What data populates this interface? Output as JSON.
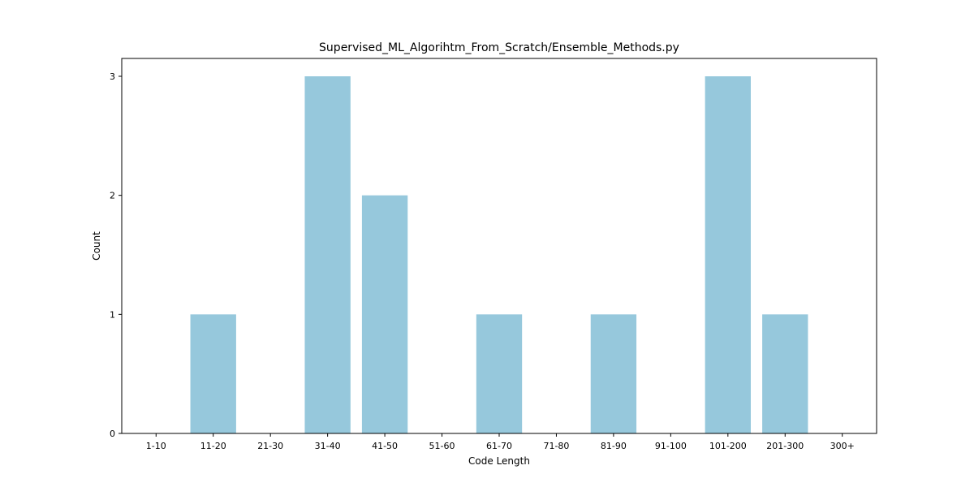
{
  "chart_data": {
    "type": "bar",
    "title": "Supervised_ML_Algorihtm_From_Scratch/Ensemble_Methods.py",
    "xlabel": "Code Length",
    "ylabel": "Count",
    "categories": [
      "1-10",
      "11-20",
      "21-30",
      "31-40",
      "41-50",
      "51-60",
      "61-70",
      "71-80",
      "81-90",
      "91-100",
      "101-200",
      "201-300",
      "300+"
    ],
    "values": [
      0,
      1,
      0,
      3,
      2,
      0,
      1,
      0,
      1,
      0,
      3,
      1,
      0
    ],
    "yticks": [
      "0",
      "1",
      "2",
      "3"
    ],
    "ylim": [
      0,
      3.15
    ],
    "grid": false,
    "bar_color": "#96c8dc"
  }
}
